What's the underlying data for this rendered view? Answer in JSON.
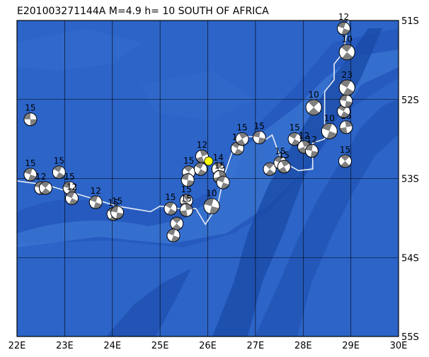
{
  "title": "E201003271144A  M=4.9  h= 10  SOUTH OF AFRICA",
  "map": {
    "lon_min": 22,
    "lon_max": 30,
    "lat_top": -51,
    "lat_bottom": -55,
    "ocean_color": "#2c64c8",
    "ridge_color": "#1a4aa6",
    "plate_boundary_color": "#e6ecf5",
    "event_color": "#ffff00",
    "lon_labels": [
      "22E",
      "23E",
      "24E",
      "25E",
      "26E",
      "27E",
      "28E",
      "29E",
      "30E"
    ],
    "lat_labels": [
      "51S",
      "52S",
      "53S",
      "54S",
      "55S"
    ]
  },
  "event": {
    "lon": 26.02,
    "lat": -52.78,
    "icon": "star-event-marker"
  },
  "plate_boundary": [
    [
      22.0,
      -53.03
    ],
    [
      22.6,
      -53.08
    ],
    [
      23.4,
      -53.22
    ],
    [
      24.1,
      -53.35
    ],
    [
      24.8,
      -53.42
    ],
    [
      25.0,
      -53.35
    ],
    [
      25.4,
      -53.38
    ],
    [
      25.75,
      -53.38
    ],
    [
      25.95,
      -53.58
    ],
    [
      26.2,
      -53.35
    ],
    [
      26.35,
      -52.95
    ],
    [
      26.55,
      -52.6
    ],
    [
      26.75,
      -52.47
    ],
    [
      26.95,
      -52.47
    ],
    [
      27.1,
      -52.55
    ],
    [
      27.35,
      -52.45
    ],
    [
      27.55,
      -52.78
    ],
    [
      27.9,
      -52.9
    ],
    [
      28.2,
      -52.88
    ],
    [
      28.2,
      -52.55
    ],
    [
      28.45,
      -52.5
    ],
    [
      28.45,
      -51.9
    ],
    [
      28.65,
      -51.75
    ],
    [
      28.65,
      -51.55
    ],
    [
      28.85,
      -51.4
    ],
    [
      28.95,
      -51.0
    ]
  ],
  "mechanisms": [
    {
      "lon": 22.28,
      "lat": -52.25,
      "depth": "15",
      "rot": 0
    },
    {
      "lon": 22.28,
      "lat": -52.95,
      "depth": "15",
      "rot": 20
    },
    {
      "lon": 22.88,
      "lat": -52.92,
      "depth": "15",
      "rot": 30
    },
    {
      "lon": 22.5,
      "lat": -53.12,
      "depth": "12",
      "rot": 15
    },
    {
      "lon": 22.6,
      "lat": -53.12,
      "depth": "",
      "rot": 40
    },
    {
      "lon": 23.1,
      "lat": -53.12,
      "depth": "15",
      "rot": 10
    },
    {
      "lon": 23.15,
      "lat": -53.25,
      "depth": "12",
      "rot": 25
    },
    {
      "lon": 23.65,
      "lat": -53.3,
      "depth": "12",
      "rot": 20
    },
    {
      "lon": 24.02,
      "lat": -53.45,
      "depth": "15",
      "rot": 35
    },
    {
      "lon": 24.1,
      "lat": -53.43,
      "depth": "15",
      "rot": 10
    },
    {
      "lon": 25.22,
      "lat": -53.38,
      "depth": "15",
      "rot": 30
    },
    {
      "lon": 25.35,
      "lat": -53.57,
      "depth": "",
      "rot": 45
    },
    {
      "lon": 25.28,
      "lat": -53.72,
      "depth": "",
      "rot": 20
    },
    {
      "lon": 25.55,
      "lat": -53.28,
      "depth": "15",
      "rot": 60
    },
    {
      "lon": 25.55,
      "lat": -53.4,
      "depth": "15",
      "rot": 80
    },
    {
      "lon": 25.6,
      "lat": -52.92,
      "depth": "15",
      "rot": 40
    },
    {
      "lon": 25.58,
      "lat": -53.02,
      "depth": "",
      "rot": 10
    },
    {
      "lon": 25.88,
      "lat": -52.72,
      "depth": "12",
      "rot": 70
    },
    {
      "lon": 25.85,
      "lat": -52.88,
      "depth": "",
      "rot": 30
    },
    {
      "lon": 26.08,
      "lat": -53.35,
      "depth": "10",
      "rot": 15
    },
    {
      "lon": 26.22,
      "lat": -52.88,
      "depth": "14",
      "rot": 50
    },
    {
      "lon": 26.25,
      "lat": -52.98,
      "depth": "15",
      "rot": 80
    },
    {
      "lon": 26.32,
      "lat": -53.05,
      "depth": "",
      "rot": 20
    },
    {
      "lon": 26.62,
      "lat": -52.62,
      "depth": "12",
      "rot": 30
    },
    {
      "lon": 26.72,
      "lat": -52.5,
      "depth": "15",
      "rot": 60
    },
    {
      "lon": 27.08,
      "lat": -52.48,
      "depth": "15",
      "rot": 10
    },
    {
      "lon": 27.3,
      "lat": -52.88,
      "depth": "",
      "rot": 40
    },
    {
      "lon": 27.52,
      "lat": -52.8,
      "depth": "15",
      "rot": 20
    },
    {
      "lon": 27.6,
      "lat": -52.85,
      "depth": "15",
      "rot": 60
    },
    {
      "lon": 27.82,
      "lat": -52.5,
      "depth": "15",
      "rot": 30
    },
    {
      "lon": 28.02,
      "lat": -52.6,
      "depth": "12",
      "rot": 70
    },
    {
      "lon": 28.18,
      "lat": -52.65,
      "depth": "12",
      "rot": 10
    },
    {
      "lon": 28.22,
      "lat": -52.1,
      "depth": "10",
      "rot": 45
    },
    {
      "lon": 28.55,
      "lat": -52.4,
      "depth": "10",
      "rot": 20
    },
    {
      "lon": 28.9,
      "lat": -52.35,
      "depth": "15",
      "rot": 80
    },
    {
      "lon": 28.85,
      "lat": -52.15,
      "depth": "",
      "rot": 30
    },
    {
      "lon": 28.88,
      "lat": -52.78,
      "depth": "15",
      "rot": 45
    },
    {
      "lon": 28.9,
      "lat": -52.02,
      "depth": "15",
      "rot": 10
    },
    {
      "lon": 28.92,
      "lat": -51.85,
      "depth": "23",
      "rot": 30
    },
    {
      "lon": 28.92,
      "lat": -51.4,
      "depth": "10",
      "rot": 40
    },
    {
      "lon": 28.85,
      "lat": -51.1,
      "depth": "12",
      "rot": 20
    }
  ]
}
